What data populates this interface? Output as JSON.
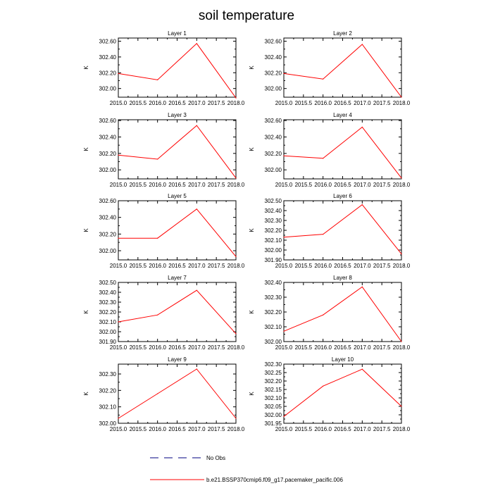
{
  "figure": {
    "title": "soil temperature",
    "legend": [
      {
        "label": "No Obs",
        "color": "#000080",
        "dash": "dashed"
      },
      {
        "label": "b.e21.BSSP370cmip6.f09_g17.pacemaker_pacific.006",
        "color": "#ff0000",
        "dash": "solid"
      }
    ]
  },
  "chart_data": [
    {
      "type": "line",
      "title": "Layer 1",
      "ylabel": "K",
      "x": [
        2015.0,
        2016.0,
        2017.0,
        2018.0
      ],
      "series": [
        {
          "name": "b.e21.BSSP370cmip6.f09_g17.pacemaker_pacific.006",
          "values": [
            302.19,
            302.11,
            302.57,
            301.88
          ]
        }
      ],
      "xlim": [
        2015.0,
        2018.0
      ],
      "ylim": [
        301.89,
        302.64
      ],
      "xticks": [
        "2015.0",
        "2015.5",
        "2016.0",
        "2016.5",
        "2017.0",
        "2017.5",
        "2018.0"
      ],
      "yticks": [
        302.0,
        302.2,
        302.4,
        302.6
      ],
      "yticklabels": [
        "302.00",
        "302.20",
        "302.40",
        "302.60"
      ]
    },
    {
      "type": "line",
      "title": "Layer 2",
      "ylabel": "K",
      "x": [
        2015.0,
        2016.0,
        2017.0,
        2018.0
      ],
      "series": [
        {
          "name": "b.e21.BSSP370cmip6.f09_g17.pacemaker_pacific.006",
          "values": [
            302.19,
            302.12,
            302.56,
            301.89
          ]
        }
      ],
      "xlim": [
        2015.0,
        2018.0
      ],
      "ylim": [
        301.89,
        302.64
      ],
      "xticks": [
        "2015.0",
        "2015.5",
        "2016.0",
        "2016.5",
        "2017.0",
        "2017.5",
        "2018.0"
      ],
      "yticks": [
        302.0,
        302.2,
        302.4,
        302.6
      ],
      "yticklabels": [
        "302.00",
        "302.20",
        "302.40",
        "302.60"
      ]
    },
    {
      "type": "line",
      "title": "Layer 3",
      "ylabel": "K",
      "x": [
        2015.0,
        2016.0,
        2017.0,
        2018.0
      ],
      "series": [
        {
          "name": "b.e21.BSSP370cmip6.f09_g17.pacemaker_pacific.006",
          "values": [
            302.18,
            302.13,
            302.54,
            301.9
          ]
        }
      ],
      "xlim": [
        2015.0,
        2018.0
      ],
      "ylim": [
        301.89,
        302.61
      ],
      "xticks": [
        "2015.0",
        "2015.5",
        "2016.0",
        "2016.5",
        "2017.0",
        "2017.5",
        "2018.0"
      ],
      "yticks": [
        302.0,
        302.2,
        302.4,
        302.6
      ],
      "yticklabels": [
        "302.00",
        "302.20",
        "302.40",
        "302.60"
      ]
    },
    {
      "type": "line",
      "title": "Layer 4",
      "ylabel": "K",
      "x": [
        2015.0,
        2016.0,
        2017.0,
        2018.0
      ],
      "series": [
        {
          "name": "b.e21.BSSP370cmip6.f09_g17.pacemaker_pacific.006",
          "values": [
            302.17,
            302.14,
            302.52,
            301.9
          ]
        }
      ],
      "xlim": [
        2015.0,
        2018.0
      ],
      "ylim": [
        301.89,
        302.61
      ],
      "xticks": [
        "2015.0",
        "2015.5",
        "2016.0",
        "2016.5",
        "2017.0",
        "2017.5",
        "2018.0"
      ],
      "yticks": [
        302.0,
        302.2,
        302.4,
        302.6
      ],
      "yticklabels": [
        "302.00",
        "302.20",
        "302.40",
        "302.60"
      ]
    },
    {
      "type": "line",
      "title": "Layer 5",
      "ylabel": "K",
      "x": [
        2015.0,
        2016.0,
        2017.0,
        2018.0
      ],
      "series": [
        {
          "name": "b.e21.BSSP370cmip6.f09_g17.pacemaker_pacific.006",
          "values": [
            302.15,
            302.15,
            302.5,
            301.93
          ]
        }
      ],
      "xlim": [
        2015.0,
        2018.0
      ],
      "ylim": [
        301.89,
        302.6
      ],
      "xticks": [
        "2015.0",
        "2015.5",
        "2016.0",
        "2016.5",
        "2017.0",
        "2017.5",
        "2018.0"
      ],
      "yticks": [
        302.0,
        302.2,
        302.4,
        302.6
      ],
      "yticklabels": [
        "302.00",
        "302.20",
        "302.40",
        "302.60"
      ]
    },
    {
      "type": "line",
      "title": "Layer 6",
      "ylabel": "K",
      "x": [
        2015.0,
        2016.0,
        2017.0,
        2018.0
      ],
      "series": [
        {
          "name": "b.e21.BSSP370cmip6.f09_g17.pacemaker_pacific.006",
          "values": [
            302.13,
            302.16,
            302.46,
            301.96
          ]
        }
      ],
      "xlim": [
        2015.0,
        2018.0
      ],
      "ylim": [
        301.9,
        302.5
      ],
      "xticks": [
        "2015.0",
        "2015.5",
        "2016.0",
        "2016.5",
        "2017.0",
        "2017.5",
        "2018.0"
      ],
      "yticks": [
        301.9,
        302.0,
        302.1,
        302.2,
        302.3,
        302.4,
        302.5
      ],
      "yticklabels": [
        "301.90",
        "302.00",
        "302.10",
        "302.20",
        "302.30",
        "302.40",
        "302.50"
      ]
    },
    {
      "type": "line",
      "title": "Layer 7",
      "ylabel": "K",
      "x": [
        2015.0,
        2016.0,
        2017.0,
        2018.0
      ],
      "series": [
        {
          "name": "b.e21.BSSP370cmip6.f09_g17.pacemaker_pacific.006",
          "values": [
            302.1,
            302.17,
            302.42,
            301.98
          ]
        }
      ],
      "xlim": [
        2015.0,
        2018.0
      ],
      "ylim": [
        301.9,
        302.5
      ],
      "xticks": [
        "2015.0",
        "2015.5",
        "2016.0",
        "2016.5",
        "2017.0",
        "2017.5",
        "2018.0"
      ],
      "yticks": [
        301.9,
        302.0,
        302.1,
        302.2,
        302.3,
        302.4,
        302.5
      ],
      "yticklabels": [
        "301.90",
        "302.00",
        "302.10",
        "302.20",
        "302.30",
        "302.40",
        "302.50"
      ]
    },
    {
      "type": "line",
      "title": "Layer 8",
      "ylabel": "K",
      "x": [
        2015.0,
        2016.0,
        2017.0,
        2018.0
      ],
      "series": [
        {
          "name": "b.e21.BSSP370cmip6.f09_g17.pacemaker_pacific.006",
          "values": [
            302.07,
            302.18,
            302.37,
            302.0
          ]
        }
      ],
      "xlim": [
        2015.0,
        2018.0
      ],
      "ylim": [
        302.0,
        302.4
      ],
      "xticks": [
        "2015.0",
        "2015.5",
        "2016.0",
        "2016.5",
        "2017.0",
        "2017.5",
        "2018.0"
      ],
      "yticks": [
        302.0,
        302.1,
        302.2,
        302.3,
        302.4
      ],
      "yticklabels": [
        "302.00",
        "302.10",
        "302.20",
        "302.30",
        "302.40"
      ]
    },
    {
      "type": "line",
      "title": "Layer 9",
      "ylabel": "K",
      "x": [
        2015.0,
        2016.0,
        2017.0,
        2018.0
      ],
      "series": [
        {
          "name": "b.e21.BSSP370cmip6.f09_g17.pacemaker_pacific.006",
          "values": [
            302.03,
            302.18,
            302.33,
            302.03
          ]
        }
      ],
      "xlim": [
        2015.0,
        2018.0
      ],
      "ylim": [
        302.0,
        302.36
      ],
      "xticks": [
        "2015.0",
        "2015.5",
        "2016.0",
        "2016.5",
        "2017.0",
        "2017.5",
        "2018.0"
      ],
      "yticks": [
        302.0,
        302.1,
        302.2,
        302.3
      ],
      "yticklabels": [
        "302.00",
        "302.10",
        "302.20",
        "302.30"
      ]
    },
    {
      "type": "line",
      "title": "Layer 10",
      "ylabel": "K",
      "x": [
        2015.0,
        2016.0,
        2017.0,
        2018.0
      ],
      "series": [
        {
          "name": "b.e21.BSSP370cmip6.f09_g17.pacemaker_pacific.006",
          "values": [
            301.99,
            302.17,
            302.27,
            302.05
          ]
        }
      ],
      "xlim": [
        2015.0,
        2018.0
      ],
      "ylim": [
        301.95,
        302.3
      ],
      "xticks": [
        "2015.0",
        "2015.5",
        "2016.0",
        "2016.5",
        "2017.0",
        "2017.5",
        "2018.0"
      ],
      "yticks": [
        301.95,
        302.0,
        302.05,
        302.1,
        302.15,
        302.2,
        302.25,
        302.3
      ],
      "yticklabels": [
        "301.95",
        "302.00",
        "302.05",
        "302.10",
        "302.15",
        "302.20",
        "302.25",
        "302.30"
      ]
    }
  ]
}
